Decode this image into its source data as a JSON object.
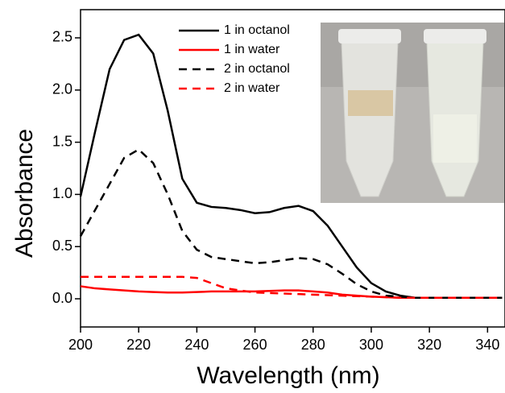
{
  "chart_data": {
    "type": "line",
    "x_label": "Wavelength (nm)",
    "y_label": "Absorbance",
    "x": [
      200,
      205,
      210,
      215,
      220,
      225,
      230,
      235,
      240,
      245,
      250,
      255,
      260,
      265,
      270,
      275,
      280,
      285,
      290,
      295,
      300,
      305,
      310,
      315,
      320,
      325,
      330,
      335,
      340,
      345
    ],
    "series": [
      {
        "name": "1 in octanol",
        "color": "#000000",
        "dash": false,
        "values": [
          0.98,
          1.6,
          2.2,
          2.48,
          2.53,
          2.35,
          1.8,
          1.15,
          0.92,
          0.88,
          0.87,
          0.85,
          0.82,
          0.83,
          0.87,
          0.89,
          0.84,
          0.7,
          0.5,
          0.3,
          0.15,
          0.07,
          0.03,
          0.01,
          0.01,
          0.01,
          0.01,
          0.01,
          0.01,
          0.01
        ]
      },
      {
        "name": "1 in water",
        "color": "#ff0000",
        "dash": false,
        "values": [
          0.12,
          0.1,
          0.09,
          0.08,
          0.07,
          0.065,
          0.06,
          0.06,
          0.065,
          0.07,
          0.07,
          0.07,
          0.07,
          0.075,
          0.08,
          0.08,
          0.07,
          0.06,
          0.04,
          0.03,
          0.02,
          0.015,
          0.01,
          0.01,
          0.01,
          0.01,
          0.01,
          0.01,
          0.01,
          0.01
        ]
      },
      {
        "name": "2 in octanol",
        "color": "#000000",
        "dash": true,
        "values": [
          0.6,
          0.85,
          1.1,
          1.35,
          1.43,
          1.3,
          1.0,
          0.65,
          0.47,
          0.4,
          0.38,
          0.36,
          0.34,
          0.35,
          0.37,
          0.39,
          0.38,
          0.33,
          0.24,
          0.14,
          0.07,
          0.03,
          0.02,
          0.01,
          0.01,
          0.01,
          0.01,
          0.01,
          0.01,
          0.01
        ]
      },
      {
        "name": "2 in water",
        "color": "#ff0000",
        "dash": true,
        "values": [
          0.21,
          0.21,
          0.21,
          0.21,
          0.21,
          0.21,
          0.21,
          0.21,
          0.2,
          0.15,
          0.1,
          0.08,
          0.06,
          0.055,
          0.05,
          0.045,
          0.04,
          0.035,
          0.03,
          0.025,
          0.02,
          0.015,
          0.01,
          0.01,
          0.01,
          0.01,
          0.01,
          0.01,
          0.01,
          0.01
        ]
      }
    ],
    "xlim": [
      200,
      346
    ],
    "ylim": [
      -0.27,
      2.77
    ],
    "xticks": [
      200,
      220,
      240,
      260,
      280,
      300,
      320,
      340
    ],
    "yticks": [
      {
        "value": 0,
        "label": "0.0"
      },
      0.5,
      {
        "value": 1,
        "label": "1.0"
      },
      1.5,
      {
        "value": 2,
        "label": "2.0"
      },
      2.5
    ]
  }
}
